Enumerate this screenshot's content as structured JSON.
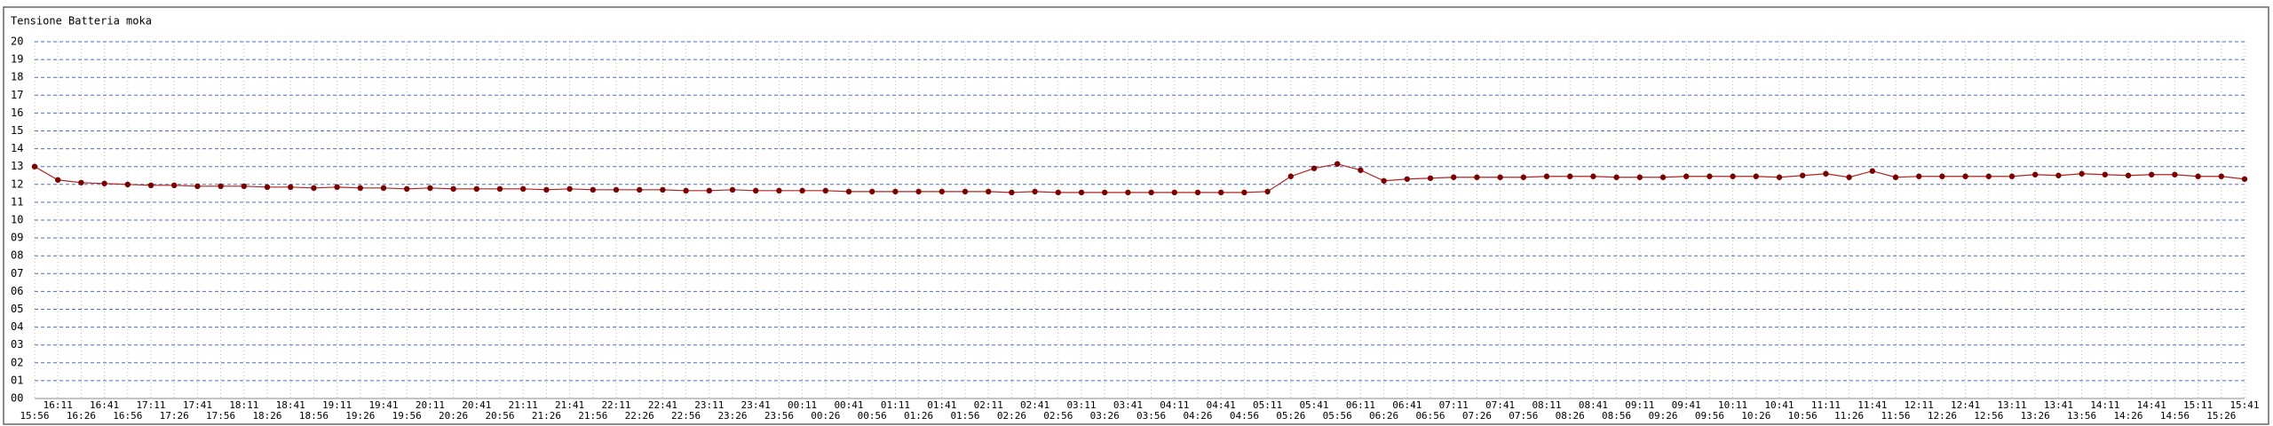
{
  "chart_data": {
    "type": "line",
    "title": "Tensione Batteria moka",
    "categories": [
      "15:56",
      "16:11",
      "16:26",
      "16:41",
      "16:56",
      "17:11",
      "17:26",
      "17:41",
      "17:56",
      "18:11",
      "18:26",
      "18:41",
      "18:56",
      "19:11",
      "19:26",
      "19:41",
      "19:56",
      "20:11",
      "20:26",
      "20:41",
      "20:56",
      "21:11",
      "21:26",
      "21:41",
      "21:56",
      "22:11",
      "22:26",
      "22:41",
      "22:56",
      "23:11",
      "23:26",
      "23:41",
      "23:56",
      "00:11",
      "00:26",
      "00:41",
      "00:56",
      "01:11",
      "01:26",
      "01:41",
      "01:56",
      "02:11",
      "02:26",
      "02:41",
      "02:56",
      "03:11",
      "03:26",
      "03:41",
      "03:56",
      "04:11",
      "04:26",
      "04:41",
      "04:56",
      "05:11",
      "05:26",
      "05:41",
      "05:56",
      "06:11",
      "06:26",
      "06:41",
      "06:56",
      "07:11",
      "07:26",
      "07:41",
      "07:56",
      "08:11",
      "08:26",
      "08:41",
      "08:56",
      "09:11",
      "09:26",
      "09:41",
      "09:56",
      "10:11",
      "10:26",
      "10:41",
      "10:56",
      "11:11",
      "11:26",
      "11:41",
      "11:56",
      "12:11",
      "12:26",
      "12:41",
      "12:56",
      "13:11",
      "13:26",
      "13:41",
      "13:56",
      "14:11",
      "14:26",
      "14:41",
      "14:56",
      "15:11",
      "15:26",
      "15:41"
    ],
    "values": [
      13.0,
      12.25,
      12.1,
      12.05,
      12.0,
      11.95,
      11.95,
      11.9,
      11.9,
      11.9,
      11.85,
      11.85,
      11.8,
      11.85,
      11.8,
      11.8,
      11.75,
      11.8,
      11.75,
      11.75,
      11.75,
      11.75,
      11.7,
      11.75,
      11.7,
      11.7,
      11.7,
      11.7,
      11.65,
      11.65,
      11.7,
      11.65,
      11.65,
      11.65,
      11.65,
      11.6,
      11.6,
      11.6,
      11.6,
      11.6,
      11.6,
      11.6,
      11.55,
      11.6,
      11.55,
      11.55,
      11.55,
      11.55,
      11.55,
      11.55,
      11.55,
      11.55,
      11.55,
      11.6,
      12.45,
      12.9,
      13.15,
      12.8,
      12.2,
      12.3,
      12.35,
      12.4,
      12.4,
      12.4,
      12.4,
      12.45,
      12.45,
      12.45,
      12.4,
      12.4,
      12.4,
      12.45,
      12.45,
      12.45,
      12.45,
      12.4,
      12.5,
      12.6,
      12.4,
      12.75,
      12.4,
      12.45,
      12.45,
      12.45,
      12.45,
      12.45,
      12.55,
      12.5,
      12.6,
      12.55,
      12.5,
      12.55,
      12.55,
      12.45,
      12.45,
      12.3
    ],
    "color": "#b22222",
    "ylim": [
      0,
      20
    ],
    "yticks": [
      {
        "value": 0,
        "label": "00"
      },
      {
        "value": 1,
        "label": "01"
      },
      {
        "value": 2,
        "label": "02"
      },
      {
        "value": 3,
        "label": "03"
      },
      {
        "value": 4,
        "label": "04"
      },
      {
        "value": 5,
        "label": "05"
      },
      {
        "value": 6,
        "label": "06"
      },
      {
        "value": 7,
        "label": "07"
      },
      {
        "value": 8,
        "label": "08"
      },
      {
        "value": 9,
        "label": "09"
      },
      10,
      11,
      12,
      13,
      14,
      15,
      16,
      17,
      18,
      19,
      20
    ],
    "grid": true
  }
}
